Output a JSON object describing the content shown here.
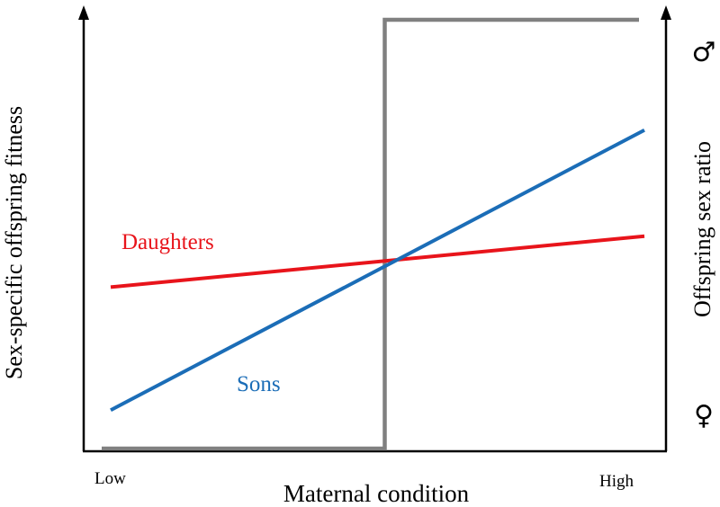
{
  "figure": {
    "y_axis_left_label": "Sex-specific offspring fitness",
    "y_axis_right_label": "Offspring sex ratio",
    "x_axis_label": "Maternal condition",
    "x_tick_low": "Low",
    "x_tick_high": "High",
    "right_top_symbol": "♂",
    "right_bottom_symbol": "♀"
  },
  "series": {
    "daughters": {
      "label": "Daughters",
      "color": "#e8141b",
      "start": [
        0,
        0.37
      ],
      "end": [
        1,
        0.49
      ]
    },
    "sons": {
      "label": "Sons",
      "color": "#1b6db7",
      "start": [
        0,
        0.08
      ],
      "end": [
        1,
        0.74
      ]
    },
    "sex_ratio": {
      "color": "#808080",
      "threshold": 0.5,
      "low_value": 0,
      "high_value": 1
    }
  },
  "colors": {
    "axes": "#000000"
  }
}
